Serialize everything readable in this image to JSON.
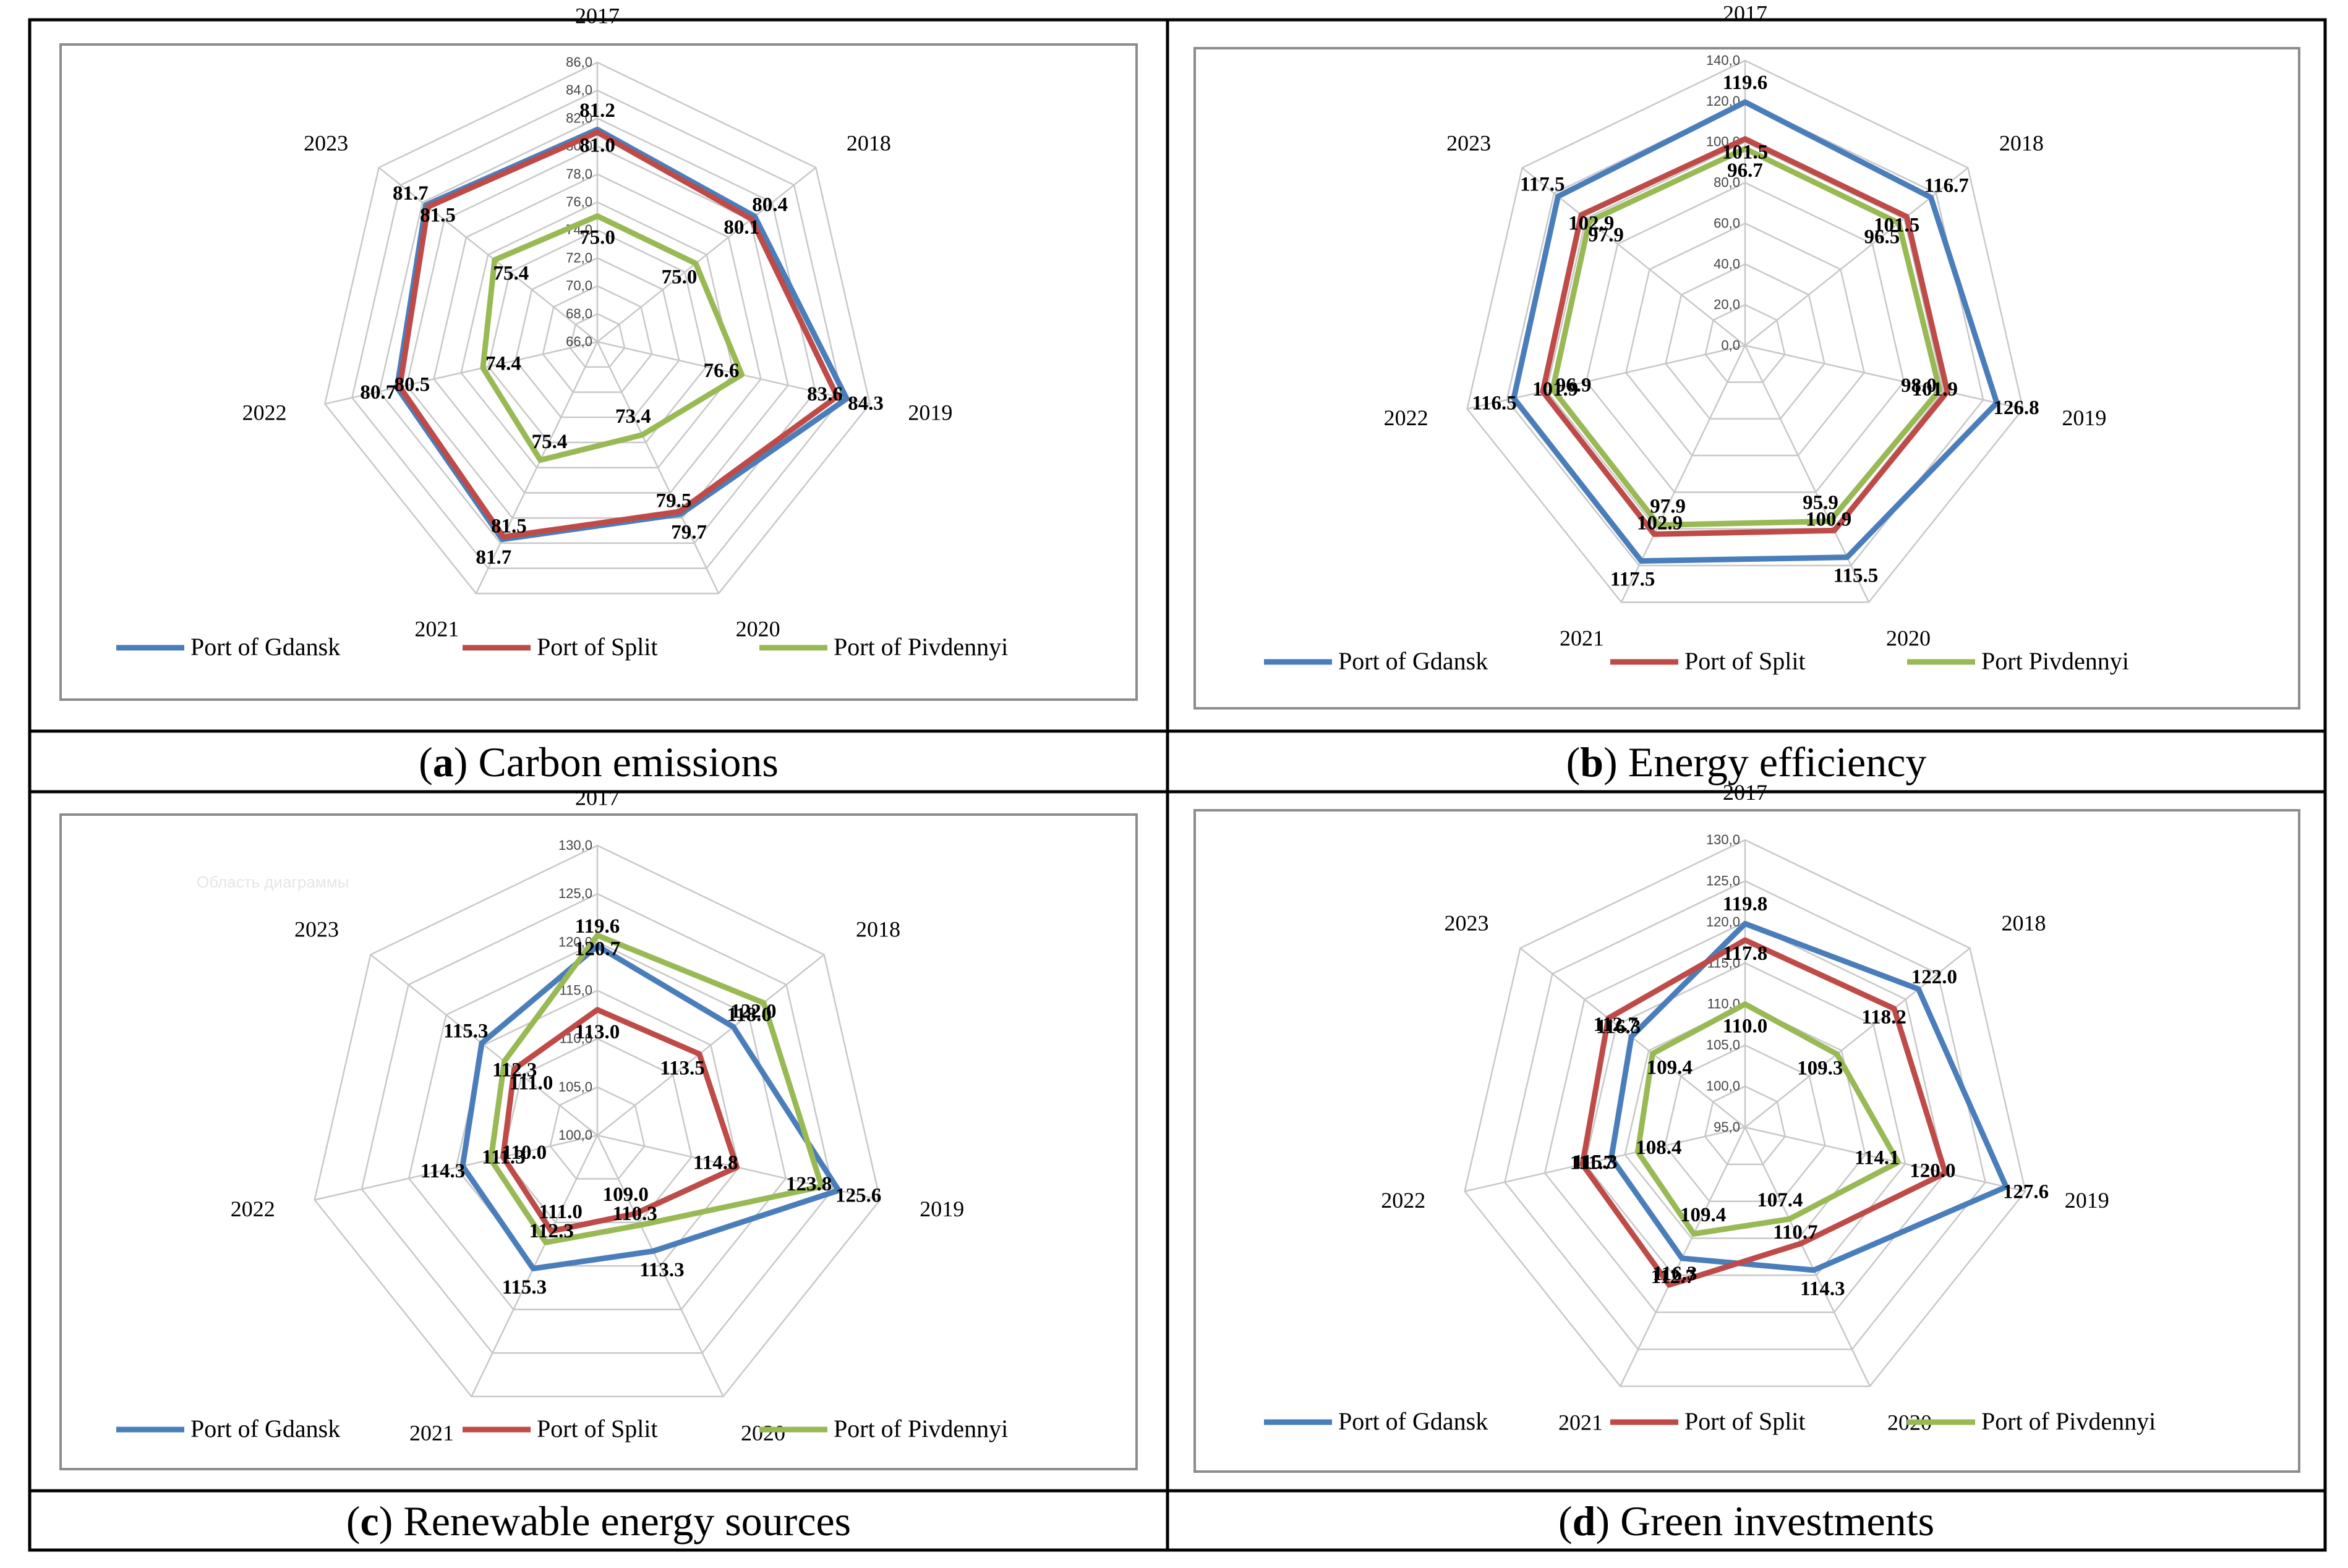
{
  "figure": {
    "panels": [
      {
        "caption_letter": "a",
        "caption_text": "Carbon emissions",
        "watermark": "",
        "chart_data": {
          "type": "radar",
          "title": "",
          "categories": [
            "2017",
            "2018",
            "2019",
            "2020",
            "2021",
            "2022",
            "2023"
          ],
          "rlim": [
            66,
            86
          ],
          "ticks": [
            "66,0",
            "68,0",
            "70,0",
            "72,0",
            "74,0",
            "76,0",
            "78,0",
            "80,0",
            "82,0",
            "84,0",
            "86,0"
          ],
          "series": [
            {
              "name": "Port of Gdansk",
              "color": "#4a7ebb",
              "values": [
                81.2,
                80.4,
                84.3,
                79.7,
                81.7,
                80.7,
                81.7
              ],
              "labels": [
                "81.2",
                "80.4",
                "84.3",
                "79.7",
                "81.7",
                "80.7",
                "81.7"
              ]
            },
            {
              "name": "Port of Split",
              "color": "#be4b48",
              "values": [
                81.0,
                80.1,
                83.6,
                79.5,
                81.5,
                80.5,
                81.5
              ],
              "labels": [
                "81.0",
                "80.1",
                "83.6",
                "79.5",
                "81.5",
                "80.5",
                "81.5"
              ]
            },
            {
              "name": "Port of Pivdennyi",
              "color": "#98b954",
              "values": [
                75.0,
                75.0,
                76.6,
                73.4,
                75.4,
                74.4,
                75.4
              ],
              "labels": [
                "75.0",
                "75.0",
                "76.6",
                "73.4",
                "75.4",
                "74.4",
                "75.4"
              ]
            }
          ]
        }
      },
      {
        "caption_letter": "b",
        "caption_text": "Energy efficiency",
        "watermark": "",
        "chart_data": {
          "type": "radar",
          "title": "",
          "categories": [
            "2017",
            "2018",
            "2019",
            "2020",
            "2021",
            "2022",
            "2023"
          ],
          "rlim": [
            0,
            140
          ],
          "ticks": [
            "0,0",
            "20,0",
            "40,0",
            "60,0",
            "80,0",
            "100,0",
            "120,0",
            "140,0"
          ],
          "series": [
            {
              "name": "Port of Gdansk",
              "color": "#4a7ebb",
              "values": [
                119.6,
                116.7,
                126.8,
                115.5,
                117.5,
                116.5,
                117.5
              ],
              "labels": [
                "119.6",
                "116.7",
                "126.8",
                "115.5",
                "117.5",
                "116.5",
                "117.5"
              ]
            },
            {
              "name": "Port of Split",
              "color": "#be4b48",
              "values": [
                101.5,
                101.5,
                101.9,
                100.9,
                102.9,
                101.9,
                102.9
              ],
              "labels": [
                "101.5",
                "101.5",
                "101.9",
                "100.9",
                "102.9",
                "101.9",
                "102.9"
              ]
            },
            {
              "name": "Port Pivdennyi",
              "color": "#98b954",
              "values": [
                96.7,
                96.5,
                98.0,
                95.9,
                97.9,
                96.9,
                97.9
              ],
              "labels": [
                "96.7",
                "96.5",
                "98.0",
                "95.9",
                "97.9",
                "96.9",
                "97.9"
              ]
            }
          ]
        }
      },
      {
        "caption_letter": "c",
        "caption_text": "Renewable energy sources",
        "watermark": "Область диаграммы",
        "chart_data": {
          "type": "radar",
          "title": "",
          "categories": [
            "2017",
            "2018",
            "2019",
            "2020",
            "2021",
            "2022",
            "2023"
          ],
          "rlim": [
            100,
            130
          ],
          "ticks": [
            "100,0",
            "105,0",
            "110,0",
            "115,0",
            "120,0",
            "125,0",
            "130,0"
          ],
          "series": [
            {
              "name": "Port of Gdansk",
              "color": "#4a7ebb",
              "values": [
                119.6,
                118.0,
                125.6,
                113.3,
                115.3,
                114.3,
                115.3
              ],
              "labels": [
                "119.6",
                "118.0",
                "125.6",
                "113.3",
                "115.3",
                "114.3",
                "115.3"
              ]
            },
            {
              "name": "Port of Split",
              "color": "#be4b48",
              "values": [
                113.0,
                113.5,
                114.8,
                109.0,
                111.0,
                110.0,
                111.0
              ],
              "labels": [
                "113.0",
                "113.5",
                "114.8",
                "109.0",
                "111.0",
                "110.0",
                "111.0"
              ]
            },
            {
              "name": "Port of Pivdennyi",
              "color": "#98b954",
              "values": [
                120.7,
                122.0,
                123.8,
                110.3,
                112.3,
                111.3,
                112.3
              ],
              "labels": [
                "120.7",
                "122.0",
                "123.8",
                "110.3",
                "112.3",
                "111.3",
                "112.3"
              ]
            }
          ]
        }
      },
      {
        "caption_letter": "d",
        "caption_text": "Green investments",
        "watermark": "",
        "chart_data": {
          "type": "radar",
          "title": "",
          "categories": [
            "2017",
            "2018",
            "2019",
            "2020",
            "2021",
            "2022",
            "2023"
          ],
          "rlim": [
            95,
            130
          ],
          "ticks": [
            "95,0",
            "100,0",
            "105,0",
            "110,0",
            "115,0",
            "120,0",
            "125,0",
            "130,0"
          ],
          "series": [
            {
              "name": "Port of Gdansk",
              "color": "#4a7ebb",
              "values": [
                119.8,
                122.0,
                127.6,
                114.3,
                112.7,
                111.7,
                112.7
              ],
              "labels": [
                "119.8",
                "122.0",
                "127.6",
                "114.3",
                "112.7",
                "111.7",
                "112.7"
              ]
            },
            {
              "name": "Port of Split",
              "color": "#be4b48",
              "values": [
                117.8,
                118.2,
                120.0,
                110.7,
                116.3,
                115.3,
                116.3
              ],
              "labels": [
                "117.8",
                "118.2",
                "120.0",
                "110.7",
                "116.3",
                "115.3",
                "116.3"
              ]
            },
            {
              "name": "Port of Pivdennyi",
              "color": "#98b954",
              "values": [
                110.0,
                109.3,
                114.1,
                107.4,
                109.4,
                108.4,
                109.4
              ],
              "labels": [
                "110.0",
                "109.3",
                "114.1",
                "107.4",
                "109.4",
                "108.4",
                "109.4"
              ]
            }
          ]
        }
      }
    ]
  }
}
